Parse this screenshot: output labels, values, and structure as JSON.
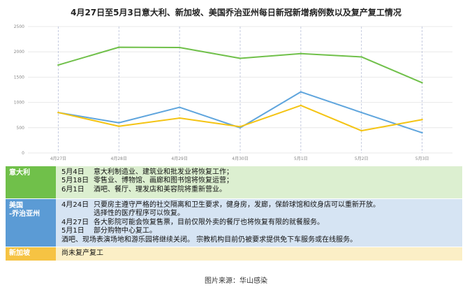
{
  "chart_data": {
    "type": "line",
    "title": "4月27日至5月3日意大利、新加坡、美国乔治亚州每日新冠新增病例数以及复产复工情况",
    "categories": [
      "4月27日",
      "4月28日",
      "4月29日",
      "4月30日",
      "5月1日",
      "5月2日",
      "5月3日"
    ],
    "ylim": [
      0,
      2500
    ],
    "yticks": [
      "0",
      "500",
      "1000",
      "1500",
      "2000",
      "2500"
    ],
    "grid": true,
    "series": [
      {
        "color": "#70c04a",
        "values": [
          1739,
          2091,
          2086,
          1872,
          1965,
          1900,
          1389
        ]
      },
      {
        "color": "#5fa5dd",
        "values": [
          799,
          597,
          904,
          498,
          1208,
          800,
          400
        ]
      },
      {
        "color": "#f4c414",
        "values": [
          800,
          528,
          690,
          520,
          940,
          440,
          660
        ]
      }
    ]
  },
  "table": {
    "italy": {
      "label": "意大利",
      "color": "#70c04a",
      "bg": "#dcefd0",
      "lines": [
        {
          "date": "5月4日",
          "text": "意大利制造业、建筑业和批发业将恢复工作；"
        },
        {
          "date": "5月18日",
          "text": "零售业、博物馆、画廊和图书馆将恢复运营；"
        },
        {
          "date": "6月1日",
          "text": "酒吧、餐厅、理发店和美容院将重新营业。"
        }
      ]
    },
    "georgia": {
      "label": "美国-乔治亚州",
      "label1": "美国",
      "label2": "-乔治亚州",
      "color": "#5b9bd5",
      "bg": "#d6e4f3",
      "lines": [
        {
          "date": "4月24日",
          "text": "只要房主遵守严格的社交隔离和卫生要求，健身房，发廊，保龄球馆和纹身店可以重新开放。"
        },
        {
          "date": "",
          "text": "选择性的医疗程序可以恢复。"
        },
        {
          "date": "4月27日",
          "text": "各大影院可能会恢复售票，目前仅限外卖的餐厅也将恢复有限的就餐服务。"
        },
        {
          "date": "5月1日",
          "text": "部分购物中心复工。"
        },
        {
          "date": "",
          "text": "酒吧、现场表演场地和游乐园将继续关闭。 宗教机构目前仍被要求提供免下车服务或在线服务。"
        }
      ]
    },
    "singapore": {
      "label": "新加坡",
      "color": "#f6c343",
      "bg": "#fbefc6",
      "text": "尚未复产复工"
    }
  },
  "source": "图片来源：华山感染"
}
